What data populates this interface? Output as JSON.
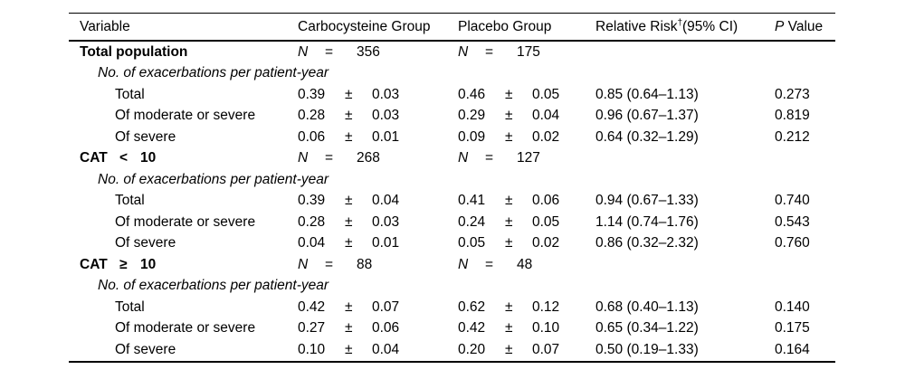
{
  "table": {
    "header": {
      "variable": "Variable",
      "carbocysteine": "Carbocysteine Group",
      "placebo": "Placebo Group",
      "relative_risk_text": "Relative Risk",
      "relative_risk_dagger": "†",
      "relative_risk_ci": "(95% CI)",
      "p_italic": "P",
      "p_rest": " Value"
    },
    "symbols": {
      "n_label": "N",
      "equals": "=",
      "plus_minus": "±"
    },
    "sections": [
      {
        "label": "Total population",
        "carb_n": "356",
        "placebo_n": "175",
        "subheader": "No. of exacerbations per patient-year",
        "rows": [
          {
            "label": "Total",
            "carb_val": "0.39",
            "carb_err": "0.03",
            "plac_val": "0.46",
            "plac_err": "0.05",
            "rr": "0.85 (0.64–1.13)",
            "p": "0.273"
          },
          {
            "label": "Of moderate or severe",
            "carb_val": "0.28",
            "carb_err": "0.03",
            "plac_val": "0.29",
            "plac_err": "0.04",
            "rr": "0.96 (0.67–1.37)",
            "p": "0.819"
          },
          {
            "label": "Of severe",
            "carb_val": "0.06",
            "carb_err": "0.01",
            "plac_val": "0.09",
            "plac_err": "0.02",
            "rr": "0.64 (0.32–1.29)",
            "p": "0.212"
          }
        ]
      },
      {
        "label": "CAT",
        "operator": "<",
        "threshold": "10",
        "carb_n": "268",
        "placebo_n": "127",
        "subheader": "No. of exacerbations per patient-year",
        "rows": [
          {
            "label": "Total",
            "carb_val": "0.39",
            "carb_err": "0.04",
            "plac_val": "0.41",
            "plac_err": "0.06",
            "rr": "0.94 (0.67–1.33)",
            "p": "0.740"
          },
          {
            "label": "Of moderate or severe",
            "carb_val": "0.28",
            "carb_err": "0.03",
            "plac_val": "0.24",
            "plac_err": "0.05",
            "rr": "1.14 (0.74–1.76)",
            "p": "0.543"
          },
          {
            "label": "Of severe",
            "carb_val": "0.04",
            "carb_err": "0.01",
            "plac_val": "0.05",
            "plac_err": "0.02",
            "rr": "0.86 (0.32–2.32)",
            "p": "0.760"
          }
        ]
      },
      {
        "label": "CAT",
        "operator": "≥",
        "threshold": "10",
        "carb_n": "88",
        "placebo_n": "48",
        "subheader": "No. of exacerbations per patient-year",
        "rows": [
          {
            "label": "Total",
            "carb_val": "0.42",
            "carb_err": "0.07",
            "plac_val": "0.62",
            "plac_err": "0.12",
            "rr": "0.68 (0.40–1.13)",
            "p": "0.140"
          },
          {
            "label": "Of moderate or severe",
            "carb_val": "0.27",
            "carb_err": "0.06",
            "plac_val": "0.42",
            "plac_err": "0.10",
            "rr": "0.65 (0.34–1.22)",
            "p": "0.175"
          },
          {
            "label": "Of severe",
            "carb_val": "0.10",
            "carb_err": "0.04",
            "plac_val": "0.20",
            "plac_err": "0.07",
            "rr": "0.50 (0.19–1.33)",
            "p": "0.164"
          }
        ]
      }
    ]
  }
}
